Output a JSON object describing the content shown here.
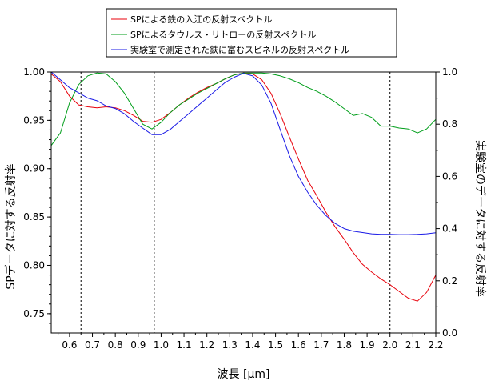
{
  "chart_data": {
    "type": "line",
    "xlabel": "波長 [μm]",
    "ylabel": "SPデータに対する反射率",
    "ylabel_right": "実験室のデータに対する反射率",
    "xlim": [
      0.52,
      2.2
    ],
    "ylim": [
      0.73,
      1.0
    ],
    "ylim_right": [
      0.0,
      1.0
    ],
    "x_ticks": [
      0.6,
      0.7,
      0.8,
      0.9,
      1.0,
      1.1,
      1.2,
      1.3,
      1.4,
      1.5,
      1.6,
      1.7,
      1.8,
      1.9,
      2.0,
      2.1,
      2.2
    ],
    "x_tick_labels": [
      "0.6",
      "0.7",
      "0.8",
      "0.9",
      "1.0",
      "1.1",
      "1.2",
      "1.3",
      "1.4",
      "1.5",
      "1.6",
      "1.7",
      "1.8",
      "1.9",
      "2.0",
      "2.1",
      "2.2"
    ],
    "y_ticks": [
      0.75,
      0.8,
      0.85,
      0.9,
      0.95,
      1.0
    ],
    "y_tick_labels": [
      "0.75",
      "0.80",
      "0.85",
      "0.90",
      "0.95",
      "1.00"
    ],
    "y_ticks_right": [
      0.0,
      0.2,
      0.4,
      0.6,
      0.8,
      1.0
    ],
    "y_tick_labels_right": [
      "0.0",
      "0.2",
      "0.4",
      "0.6",
      "0.8",
      "1.0"
    ],
    "vlines": [
      0.65,
      0.97,
      2.0
    ],
    "legend_position": "top",
    "grid": false,
    "series": [
      {
        "name": "SPによる鉄の入江の反射スペクトル",
        "color": "#e8000b",
        "axis": "left",
        "x": [
          0.52,
          0.56,
          0.6,
          0.64,
          0.68,
          0.72,
          0.76,
          0.8,
          0.84,
          0.88,
          0.92,
          0.96,
          1.0,
          1.04,
          1.08,
          1.12,
          1.16,
          1.2,
          1.24,
          1.28,
          1.32,
          1.36,
          1.4,
          1.44,
          1.48,
          1.52,
          1.56,
          1.6,
          1.64,
          1.68,
          1.72,
          1.76,
          1.8,
          1.84,
          1.88,
          1.92,
          1.96,
          2.0,
          2.04,
          2.08,
          2.12,
          2.16,
          2.2
        ],
        "y": [
          0.998,
          0.99,
          0.975,
          0.966,
          0.964,
          0.963,
          0.964,
          0.963,
          0.96,
          0.955,
          0.949,
          0.948,
          0.951,
          0.958,
          0.966,
          0.973,
          0.979,
          0.984,
          0.988,
          0.993,
          0.997,
          0.999,
          0.998,
          0.992,
          0.978,
          0.957,
          0.933,
          0.91,
          0.888,
          0.872,
          0.855,
          0.84,
          0.827,
          0.813,
          0.801,
          0.793,
          0.786,
          0.78,
          0.773,
          0.766,
          0.763,
          0.772,
          0.79
        ]
      },
      {
        "name": "SPによるタウルス・リトローの反射スペクトル",
        "color": "#009e1a",
        "axis": "left",
        "x": [
          0.52,
          0.56,
          0.6,
          0.64,
          0.68,
          0.72,
          0.76,
          0.8,
          0.84,
          0.88,
          0.92,
          0.96,
          1.0,
          1.04,
          1.08,
          1.12,
          1.16,
          1.2,
          1.24,
          1.28,
          1.32,
          1.36,
          1.4,
          1.44,
          1.48,
          1.52,
          1.56,
          1.6,
          1.64,
          1.68,
          1.72,
          1.76,
          1.8,
          1.84,
          1.88,
          1.92,
          1.96,
          2.0,
          2.04,
          2.08,
          2.12,
          2.16,
          2.2
        ],
        "y": [
          0.924,
          0.937,
          0.968,
          0.987,
          0.996,
          0.999,
          0.998,
          0.99,
          0.978,
          0.962,
          0.946,
          0.941,
          0.948,
          0.958,
          0.966,
          0.972,
          0.978,
          0.983,
          0.988,
          0.993,
          0.997,
          0.999,
          0.999,
          0.999,
          0.998,
          0.996,
          0.993,
          0.989,
          0.984,
          0.98,
          0.975,
          0.969,
          0.962,
          0.955,
          0.957,
          0.953,
          0.944,
          0.944,
          0.942,
          0.941,
          0.937,
          0.941,
          0.951
        ]
      },
      {
        "name": "実験室で測定された鉄に富むスピネルの反射スペクトル",
        "color": "#1a1ae6",
        "axis": "right",
        "x": [
          0.52,
          0.56,
          0.6,
          0.64,
          0.68,
          0.72,
          0.76,
          0.8,
          0.84,
          0.88,
          0.92,
          0.96,
          1.0,
          1.04,
          1.08,
          1.12,
          1.16,
          1.2,
          1.24,
          1.28,
          1.32,
          1.36,
          1.4,
          1.44,
          1.48,
          1.52,
          1.56,
          1.6,
          1.64,
          1.68,
          1.72,
          1.76,
          1.8,
          1.84,
          1.88,
          1.92,
          1.96,
          2.0,
          2.04,
          2.08,
          2.12,
          2.16,
          2.2
        ],
        "y": [
          1.0,
          0.97,
          0.94,
          0.92,
          0.9,
          0.89,
          0.87,
          0.86,
          0.84,
          0.81,
          0.785,
          0.76,
          0.76,
          0.78,
          0.81,
          0.84,
          0.87,
          0.9,
          0.93,
          0.96,
          0.98,
          0.995,
          0.985,
          0.95,
          0.88,
          0.78,
          0.68,
          0.6,
          0.54,
          0.49,
          0.45,
          0.42,
          0.4,
          0.39,
          0.385,
          0.38,
          0.378,
          0.378,
          0.377,
          0.377,
          0.378,
          0.38,
          0.384
        ]
      }
    ]
  }
}
